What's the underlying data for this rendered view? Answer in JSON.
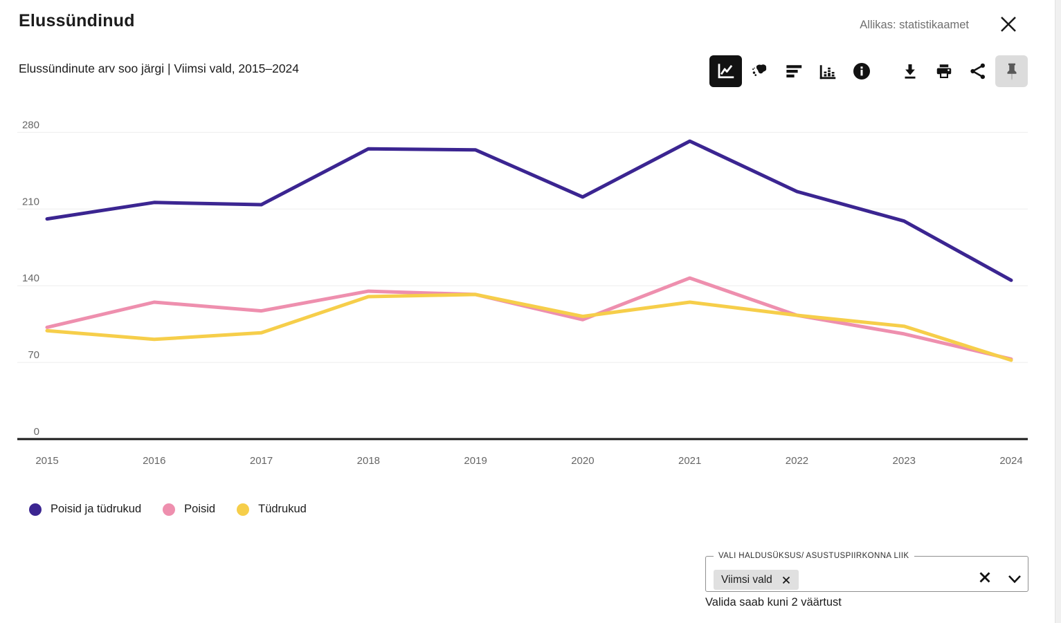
{
  "header": {
    "title": "Elussündinud",
    "source": "Allikas: statistikaamet"
  },
  "subtitle": "Elussündinute arv soo järgi | Viimsi vald, 2015–2024",
  "toolbar": {
    "icons": [
      "line-chart-icon",
      "estonia-map-icon",
      "horizontal-bar-chart-icon",
      "column-chart-icon",
      "info-icon",
      "download-icon",
      "print-icon",
      "share-icon",
      "pin-icon"
    ],
    "selected": [
      "line-chart-icon",
      "pin-icon"
    ]
  },
  "chart_data": {
    "type": "line",
    "title": "Elussündinute arv soo järgi | Viimsi vald, 2015–2024",
    "categories": [
      "2015",
      "2016",
      "2017",
      "2018",
      "2019",
      "2020",
      "2021",
      "2022",
      "2023",
      "2024"
    ],
    "series": [
      {
        "name": "Poisid ja tüdrukud",
        "color": "#3b2591",
        "values": [
          201,
          216,
          214,
          265,
          264,
          221,
          272,
          226,
          199,
          145
        ]
      },
      {
        "name": "Poisid",
        "color": "#ee8fae",
        "values": [
          102,
          125,
          117,
          135,
          132,
          109,
          147,
          113,
          96,
          73
        ]
      },
      {
        "name": "Tüdrukud",
        "color": "#f6ce4a",
        "values": [
          99,
          91,
          97,
          130,
          132,
          112,
          125,
          113,
          103,
          72
        ]
      }
    ],
    "xlabel": "",
    "ylabel": "",
    "ylim": [
      0,
      280
    ],
    "yticks": [
      0,
      70,
      140,
      210,
      280
    ],
    "grid": true,
    "legend_position": "bottom-left",
    "colors": {
      "grid": "#ededed",
      "axis": "#1a1a1a",
      "tick_label": "#666666"
    }
  },
  "filter": {
    "label": "VALI HALDUSÜKSUS/ ASUSTUSPIIRKONNA LIIK",
    "selected": [
      "Viimsi vald"
    ],
    "helper": "Valida saab kuni 2 väärtust"
  }
}
